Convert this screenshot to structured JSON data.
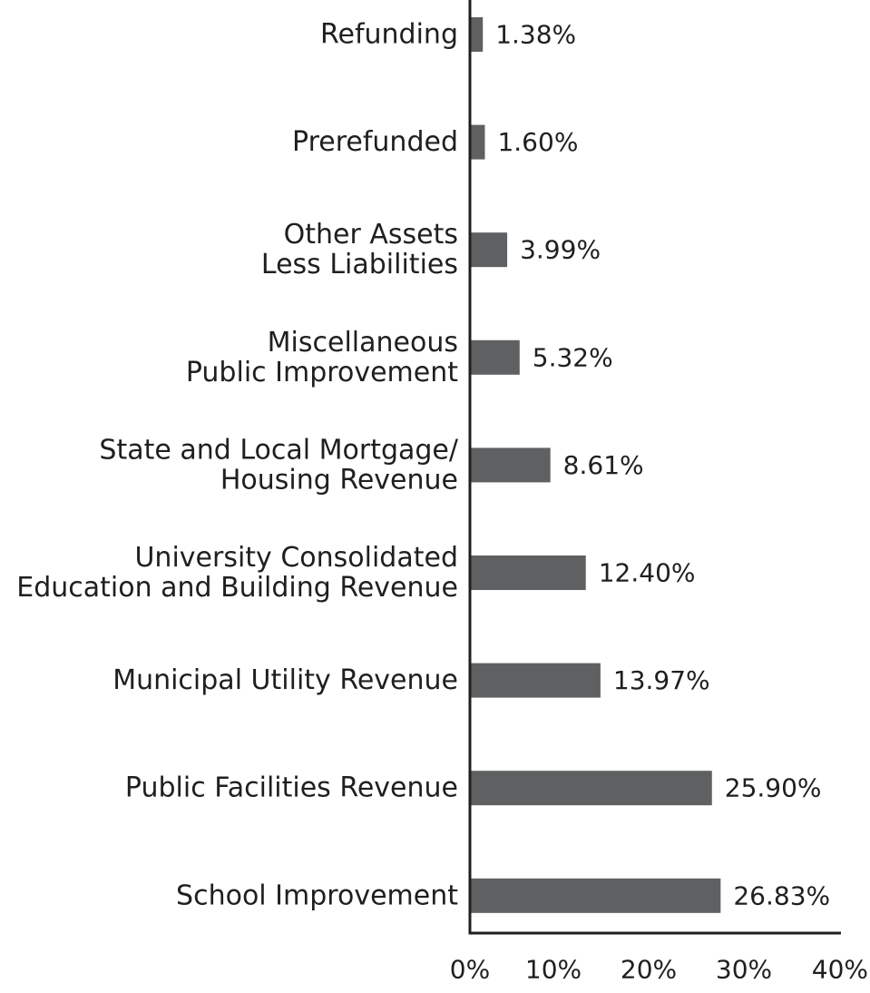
{
  "chart_data": {
    "type": "bar",
    "orientation": "horizontal",
    "categories": [
      [
        "Refunding"
      ],
      [
        "Prerefunded"
      ],
      [
        "Other Assets",
        "Less Liabilities"
      ],
      [
        "Miscellaneous",
        "Public Improvement"
      ],
      [
        "State and Local Mortgage/",
        "Housing Revenue"
      ],
      [
        "University Consolidated",
        "Education and Building Revenue"
      ],
      [
        "Municipal Utility Revenue"
      ],
      [
        "Public Facilities Revenue"
      ],
      [
        "School Improvement"
      ]
    ],
    "values": [
      1.38,
      1.6,
      3.99,
      5.32,
      8.61,
      12.4,
      13.97,
      25.9,
      26.83
    ],
    "value_labels": [
      "1.38%",
      "1.60%",
      "3.99%",
      "5.32%",
      "8.61%",
      "12.40%",
      "13.97%",
      "25.90%",
      "26.83%"
    ],
    "xlim": [
      0,
      40
    ],
    "x_ticks": [
      0,
      10,
      20,
      30,
      40
    ],
    "x_tick_labels": [
      "0%",
      "10%",
      "20%",
      "30%",
      "40%"
    ],
    "bar_color": "#5f6062",
    "axis_color": "#1f1f1f",
    "grid": false,
    "title": "",
    "xlabel": "",
    "ylabel": ""
  }
}
